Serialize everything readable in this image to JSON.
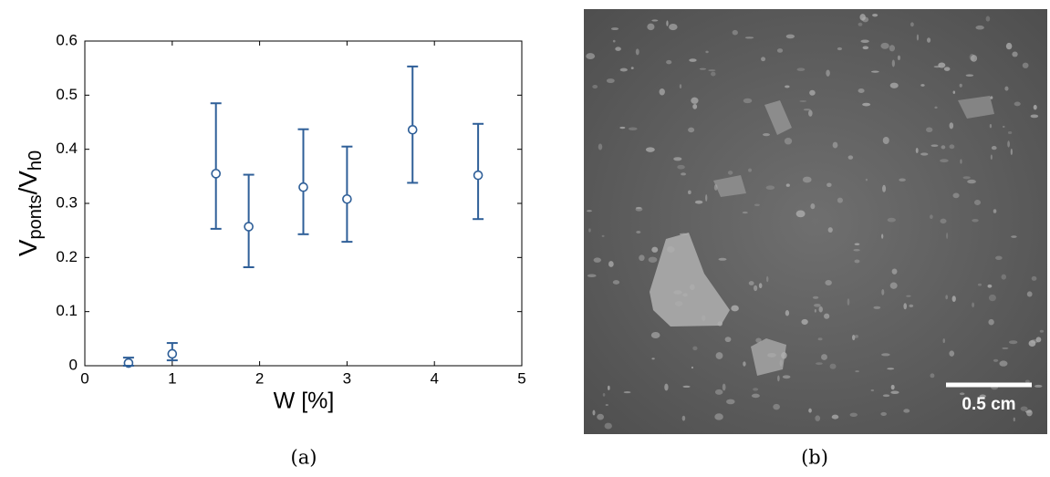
{
  "chart_data": {
    "type": "errorbar",
    "xlabel": "W [%]",
    "ylabel": [
      "V",
      "ponts",
      "/V",
      "h0"
    ],
    "x": [
      0.5,
      1,
      1.5,
      1.875,
      2.5,
      3,
      3.75,
      4.5
    ],
    "series": [
      {
        "color": "#2f5f98",
        "values": [
          0.005,
          0.022,
          0.355,
          0.257,
          0.33,
          0.308,
          0.436,
          0.352
        ],
        "err_minus": [
          0.005,
          0.012,
          0.102,
          0.075,
          0.087,
          0.079,
          0.098,
          0.081
        ],
        "err_plus": [
          0.01,
          0.02,
          0.13,
          0.096,
          0.107,
          0.097,
          0.117,
          0.095
        ]
      }
    ],
    "xlim": [
      0,
      5
    ],
    "xticks": [
      0,
      1,
      2,
      3,
      4,
      5
    ],
    "ylim": [
      0,
      0.6
    ],
    "yticks": [
      0,
      0.1,
      0.2,
      0.3,
      0.4,
      0.5,
      0.6
    ],
    "grid": false
  },
  "panels": {
    "a": "(a)",
    "b": "(b)"
  },
  "image": {
    "scale_label": "0.5 cm"
  }
}
